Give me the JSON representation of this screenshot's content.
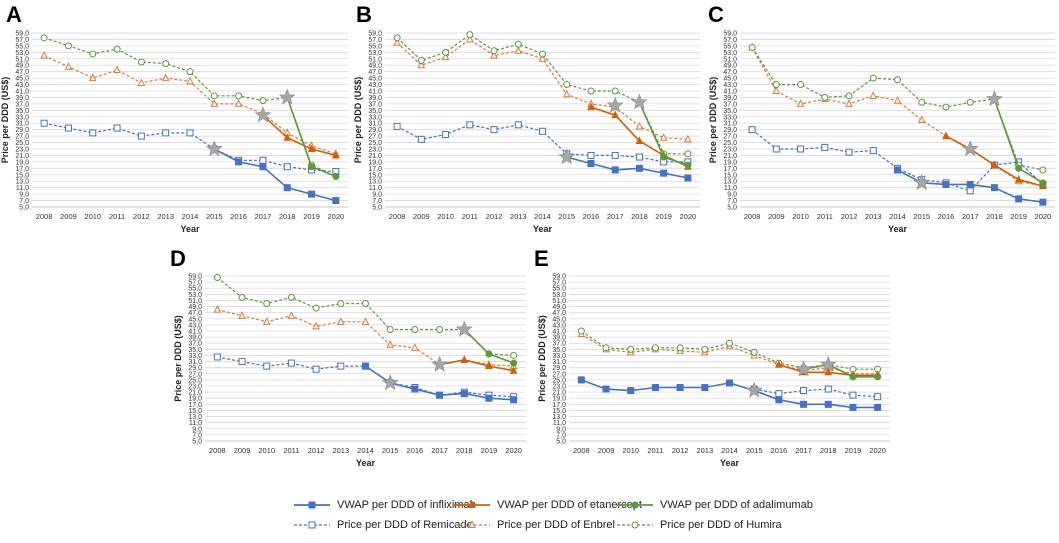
{
  "figure": {
    "x_axis_label": "Year",
    "y_axis_label": "Price per DDD (US$)"
  },
  "legend": {
    "items": [
      {
        "label": "VWAP per DDD of infliximab",
        "color": "#4472c4",
        "style": "solid",
        "marker": "square-filled"
      },
      {
        "label": "VWAP per DDD of etanercept",
        "color": "#d55e00",
        "style": "solid",
        "marker": "triangle-filled"
      },
      {
        "label": "VWAP per DDD of adalimumab",
        "color": "#5a9a3b",
        "style": "solid",
        "marker": "circle-filled"
      },
      {
        "label": "Price per DDD of Remicade",
        "color": "#4472c4",
        "style": "dashed",
        "marker": "square-open"
      },
      {
        "label": "Price per DDD of Enbrel",
        "color": "#e07b39",
        "style": "dashed",
        "marker": "triangle-open"
      },
      {
        "label": "Price per DDD of Humira",
        "color": "#5a9a3b",
        "style": "dashed",
        "marker": "circle-open"
      }
    ]
  },
  "chart_data": [
    {
      "panel": "A",
      "type": "line",
      "x": [
        "2008",
        "2009",
        "2010",
        "2011",
        "2012",
        "2013",
        "2014",
        "2015",
        "2016",
        "2017",
        "2018",
        "2019",
        "2020"
      ],
      "ylim": [
        5,
        59
      ],
      "ytick_step": 2,
      "ytick_format": "0,0",
      "xlabel": "Year",
      "ylabel": "Price per DDD (US$)",
      "series": [
        {
          "name": "Price per DDD of Remicade",
          "values": [
            31,
            29.5,
            28,
            29.5,
            27,
            28,
            28,
            23,
            19.5,
            19.5,
            17.5,
            16.5,
            16
          ]
        },
        {
          "name": "Price per DDD of Enbrel",
          "values": [
            52,
            48.5,
            45,
            47.5,
            43.5,
            45,
            44,
            37,
            37,
            34,
            28,
            24,
            21.5
          ]
        },
        {
          "name": "Price per DDD of Humira",
          "values": [
            57.5,
            55,
            52.5,
            54,
            50,
            49.5,
            47,
            39.5,
            39.5,
            38,
            39,
            18,
            14.5
          ]
        },
        {
          "name": "VWAP per DDD of infliximab",
          "values": [
            null,
            null,
            null,
            null,
            null,
            null,
            null,
            23,
            19,
            17.5,
            11,
            9,
            7
          ]
        },
        {
          "name": "VWAP per DDD of etanercept",
          "values": [
            null,
            null,
            null,
            null,
            null,
            null,
            null,
            null,
            null,
            33.5,
            26.5,
            23,
            21
          ]
        },
        {
          "name": "VWAP per DDD of adalimumab",
          "values": [
            null,
            null,
            null,
            null,
            null,
            null,
            null,
            null,
            null,
            null,
            39,
            17.5,
            14.5
          ]
        }
      ],
      "stars": [
        {
          "x": "2015",
          "y": 23
        },
        {
          "x": "2017",
          "y": 33.5
        },
        {
          "x": "2018",
          "y": 39
        }
      ]
    },
    {
      "panel": "B",
      "type": "line",
      "x": [
        "2008",
        "2009",
        "2010",
        "2011",
        "2012",
        "2013",
        "2014",
        "2015",
        "2016",
        "2017",
        "2018",
        "2019",
        "2020"
      ],
      "ylim": [
        5,
        59
      ],
      "ytick_step": 2,
      "ytick_format": "0,0",
      "xlabel": "Year",
      "ylabel": "Price per DDD (US$)",
      "series": [
        {
          "name": "Price per DDD of Remicade",
          "values": [
            30,
            26,
            27.5,
            30.5,
            29,
            30.5,
            28.5,
            21.5,
            21,
            21,
            20.5,
            19,
            19
          ]
        },
        {
          "name": "Price per DDD of Enbrel",
          "values": [
            56,
            49,
            51.5,
            57,
            52,
            53.5,
            51,
            40,
            37,
            36,
            30,
            26.5,
            26
          ]
        },
        {
          "name": "Price per DDD of Humira",
          "values": [
            57.5,
            50.5,
            53,
            58.5,
            53.5,
            55.5,
            52.5,
            43,
            41,
            41,
            37.5,
            21.5,
            21.5
          ]
        },
        {
          "name": "VWAP per DDD of infliximab",
          "values": [
            null,
            null,
            null,
            null,
            null,
            null,
            null,
            20.5,
            18.5,
            16.5,
            17,
            15.5,
            14
          ]
        },
        {
          "name": "VWAP per DDD of etanercept",
          "values": [
            null,
            null,
            null,
            null,
            null,
            null,
            null,
            null,
            36,
            33.5,
            25.5,
            21,
            17.5
          ]
        },
        {
          "name": "VWAP per DDD of adalimumab",
          "values": [
            null,
            null,
            null,
            null,
            null,
            null,
            null,
            null,
            null,
            null,
            37.5,
            20.5,
            18
          ]
        }
      ],
      "stars": [
        {
          "x": "2015",
          "y": 20.5
        },
        {
          "x": "2017",
          "y": 36.5
        },
        {
          "x": "2018",
          "y": 37.5
        }
      ]
    },
    {
      "panel": "C",
      "type": "line",
      "x": [
        "2008",
        "2009",
        "2010",
        "2011",
        "2012",
        "2013",
        "2014",
        "2015",
        "2016",
        "2017",
        "2018",
        "2019",
        "2020"
      ],
      "ylim": [
        5,
        59
      ],
      "ytick_step": 2,
      "ytick_format": "0,0",
      "xlabel": "Year",
      "ylabel": "Price per DDD (US$)",
      "series": [
        {
          "name": "Price per DDD of Remicade",
          "values": [
            29,
            23,
            23,
            23.5,
            22,
            22.5,
            17,
            13.5,
            12.5,
            10,
            18,
            19,
            12
          ]
        },
        {
          "name": "Price per DDD of Enbrel",
          "values": [
            54.5,
            41,
            37,
            38.5,
            37,
            39.5,
            38,
            32,
            27,
            23,
            18,
            13,
            11.5
          ]
        },
        {
          "name": "Price per DDD of Humira",
          "values": [
            54.5,
            43,
            43,
            39,
            39.5,
            45,
            44.5,
            37.5,
            36,
            37.5,
            38.5,
            18,
            16.5
          ]
        },
        {
          "name": "VWAP per DDD of infliximab",
          "values": [
            null,
            null,
            null,
            null,
            null,
            null,
            16.5,
            12.5,
            12,
            12,
            11,
            7.5,
            6.5
          ]
        },
        {
          "name": "VWAP per DDD of etanercept",
          "values": [
            null,
            null,
            null,
            null,
            null,
            null,
            null,
            null,
            27,
            23,
            18,
            13.5,
            11.5
          ]
        },
        {
          "name": "VWAP per DDD of adalimumab",
          "values": [
            null,
            null,
            null,
            null,
            null,
            null,
            null,
            null,
            null,
            null,
            38.5,
            17,
            12.5
          ]
        }
      ],
      "stars": [
        {
          "x": "2015",
          "y": 12.5
        },
        {
          "x": "2017",
          "y": 23
        },
        {
          "x": "2018",
          "y": 38.5
        }
      ]
    },
    {
      "panel": "D",
      "type": "line",
      "x": [
        "2008",
        "2009",
        "2010",
        "2011",
        "2012",
        "2013",
        "2014",
        "2015",
        "2016",
        "2017",
        "2018",
        "2019",
        "2020"
      ],
      "ylim": [
        5,
        59
      ],
      "ytick_step": 2,
      "ytick_format": "0,0",
      "xlabel": "Year",
      "ylabel": "Price per DDD (US$)",
      "series": [
        {
          "name": "Price per DDD of Remicade",
          "values": [
            32.5,
            31,
            29.5,
            30.5,
            28.5,
            29.5,
            29.5,
            24,
            22.5,
            20,
            21,
            20,
            19.5
          ]
        },
        {
          "name": "Price per DDD of Enbrel",
          "values": [
            48,
            46,
            44,
            46,
            42.5,
            44,
            44,
            36.5,
            35.5,
            30,
            31.5,
            30,
            29.5
          ]
        },
        {
          "name": "Price per DDD of Humira",
          "values": [
            58.5,
            52,
            50,
            52,
            48.5,
            50,
            50,
            41.5,
            41.5,
            41.5,
            41.5,
            33.5,
            33
          ]
        },
        {
          "name": "VWAP per DDD of infliximab",
          "values": [
            null,
            null,
            null,
            null,
            null,
            null,
            29.5,
            24,
            22,
            20,
            20.5,
            19,
            18.5
          ]
        },
        {
          "name": "VWAP per DDD of etanercept",
          "values": [
            null,
            null,
            null,
            null,
            null,
            null,
            null,
            null,
            null,
            30,
            31.5,
            29.5,
            28
          ]
        },
        {
          "name": "VWAP per DDD of adalimumab",
          "values": [
            null,
            null,
            null,
            null,
            null,
            null,
            null,
            null,
            null,
            null,
            41.5,
            33.5,
            30.5
          ]
        }
      ],
      "stars": [
        {
          "x": "2015",
          "y": 24
        },
        {
          "x": "2017",
          "y": 30
        },
        {
          "x": "2018",
          "y": 41.5
        }
      ]
    },
    {
      "panel": "E",
      "type": "line",
      "x": [
        "2008",
        "2009",
        "2010",
        "2011",
        "2012",
        "2013",
        "2014",
        "2015",
        "2016",
        "2017",
        "2018",
        "2019",
        "2020"
      ],
      "ylim": [
        5,
        59
      ],
      "ytick_step": 2,
      "ytick_format": "0,0",
      "xlabel": "Year",
      "ylabel": "Price per DDD (US$)",
      "series": [
        {
          "name": "Price per DDD of Remicade",
          "values": [
            null,
            null,
            null,
            null,
            null,
            null,
            null,
            22,
            20.5,
            21.5,
            22,
            20,
            19.5
          ]
        },
        {
          "name": "Price per DDD of Enbrel",
          "values": [
            40,
            35,
            34,
            35,
            34.5,
            34,
            36,
            33,
            30,
            28,
            29,
            27,
            27
          ]
        },
        {
          "name": "Price per DDD of Humira",
          "values": [
            41,
            35.5,
            35,
            35.5,
            35.5,
            35,
            37,
            34,
            30.5,
            29,
            30,
            28.5,
            28.5
          ]
        },
        {
          "name": "VWAP per DDD of infliximab",
          "values": [
            25,
            22,
            21.5,
            22.5,
            22.5,
            22.5,
            24,
            21.5,
            18.5,
            17,
            17,
            16,
            16
          ]
        },
        {
          "name": "VWAP per DDD of etanercept",
          "values": [
            null,
            null,
            null,
            null,
            null,
            null,
            null,
            null,
            30,
            27.5,
            27.5,
            26.5,
            26.5
          ]
        },
        {
          "name": "VWAP per DDD of adalimumab",
          "values": [
            null,
            null,
            null,
            null,
            null,
            null,
            null,
            null,
            null,
            28.5,
            30,
            26,
            26
          ]
        }
      ],
      "stars": [
        {
          "x": "2015",
          "y": 21.5
        },
        {
          "x": "2017",
          "y": 28.5
        },
        {
          "x": "2018",
          "y": 30
        }
      ]
    }
  ]
}
